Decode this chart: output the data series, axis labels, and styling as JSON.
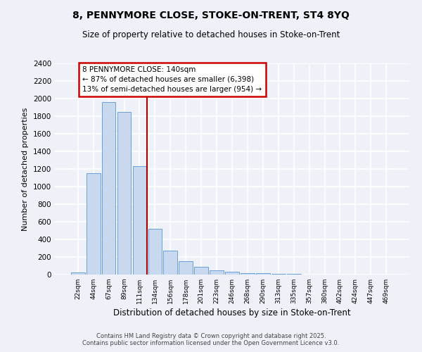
{
  "title_line1": "8, PENNYMORE CLOSE, STOKE-ON-TRENT, ST4 8YQ",
  "title_line2": "Size of property relative to detached houses in Stoke-on-Trent",
  "xlabel": "Distribution of detached houses by size in Stoke-on-Trent",
  "ylabel": "Number of detached properties",
  "categories": [
    "22sqm",
    "44sqm",
    "67sqm",
    "89sqm",
    "111sqm",
    "134sqm",
    "156sqm",
    "178sqm",
    "201sqm",
    "223sqm",
    "246sqm",
    "268sqm",
    "290sqm",
    "313sqm",
    "335sqm",
    "357sqm",
    "380sqm",
    "402sqm",
    "424sqm",
    "447sqm",
    "469sqm"
  ],
  "values": [
    25,
    1150,
    1960,
    1850,
    1230,
    520,
    275,
    155,
    90,
    45,
    35,
    20,
    15,
    8,
    5,
    4,
    3,
    2,
    2,
    1,
    1
  ],
  "bar_color": "#c8d8ee",
  "bar_edge_color": "#6a9fd8",
  "annotation_text_line1": "8 PENNYMORE CLOSE: 140sqm",
  "annotation_text_line2": "← 87% of detached houses are smaller (6,398)",
  "annotation_text_line3": "13% of semi-detached houses are larger (954) →",
  "annotation_box_color": "#ffffff",
  "annotation_box_edge_color": "#cc0000",
  "redline_color": "#aa0000",
  "ylim": [
    0,
    2400
  ],
  "yticks": [
    0,
    200,
    400,
    600,
    800,
    1000,
    1200,
    1400,
    1600,
    1800,
    2000,
    2200,
    2400
  ],
  "footer_line1": "Contains HM Land Registry data © Crown copyright and database right 2025.",
  "footer_line2": "Contains public sector information licensed under the Open Government Licence v3.0.",
  "background_color": "#eef2f8",
  "plot_bg_color": "#eef2f8",
  "grid_color": "#ffffff"
}
